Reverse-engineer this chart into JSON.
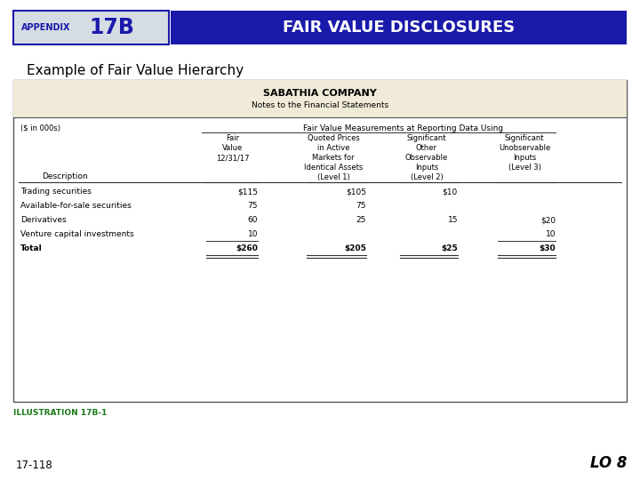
{
  "appendix_label": "APPENDIX",
  "appendix_number": "17B",
  "header_title": "FAIR VALUE DISCLOSURES",
  "header_bg": "#1a1aaa",
  "header_text_color": "#ffffff",
  "appendix_box_bg": "#d6dce4",
  "appendix_box_border": "#1a1aaa",
  "appendix_text_color": "#1a1aaa",
  "subtitle": "Example of Fair Value Hierarchy",
  "company_name": "SABATHIA COMPANY",
  "notes_title": "Notes to the Financial Statements",
  "table_header_bg": "#f0ead8",
  "table_bg": "#ffffff",
  "table_border": "#555555",
  "dollars_label": "($ in 000s)",
  "fair_value_span": "Fair Value Measurements at Reporting Data Using",
  "col_headers": [
    "Description",
    "Fair\nValue\n12/31/17",
    "Quoted Prices\nin Active\nMarkets for\nIdentical Assets\n(Level 1)",
    "Significant\nOther\nObservable\nInputs\n(Level 2)",
    "Significant\nUnobservable\nInputs\n(Level 3)"
  ],
  "rows": [
    [
      "Trading securities",
      "$115",
      "$105",
      "$10",
      ""
    ],
    [
      "Available-for-sale securities",
      "75",
      "75",
      "",
      ""
    ],
    [
      "Derivatives",
      "60",
      "25",
      "15",
      "$20"
    ],
    [
      "Venture capital investments",
      "10",
      "",
      "",
      "10"
    ],
    [
      "Total",
      "$260",
      "$205",
      "$25",
      "$30"
    ]
  ],
  "illustration_label": "ILLUSTRATION 17B-1",
  "illustration_color": "#1a7a1a",
  "page_label": "17-118",
  "lo_label": "LO 8",
  "background": "#ffffff"
}
